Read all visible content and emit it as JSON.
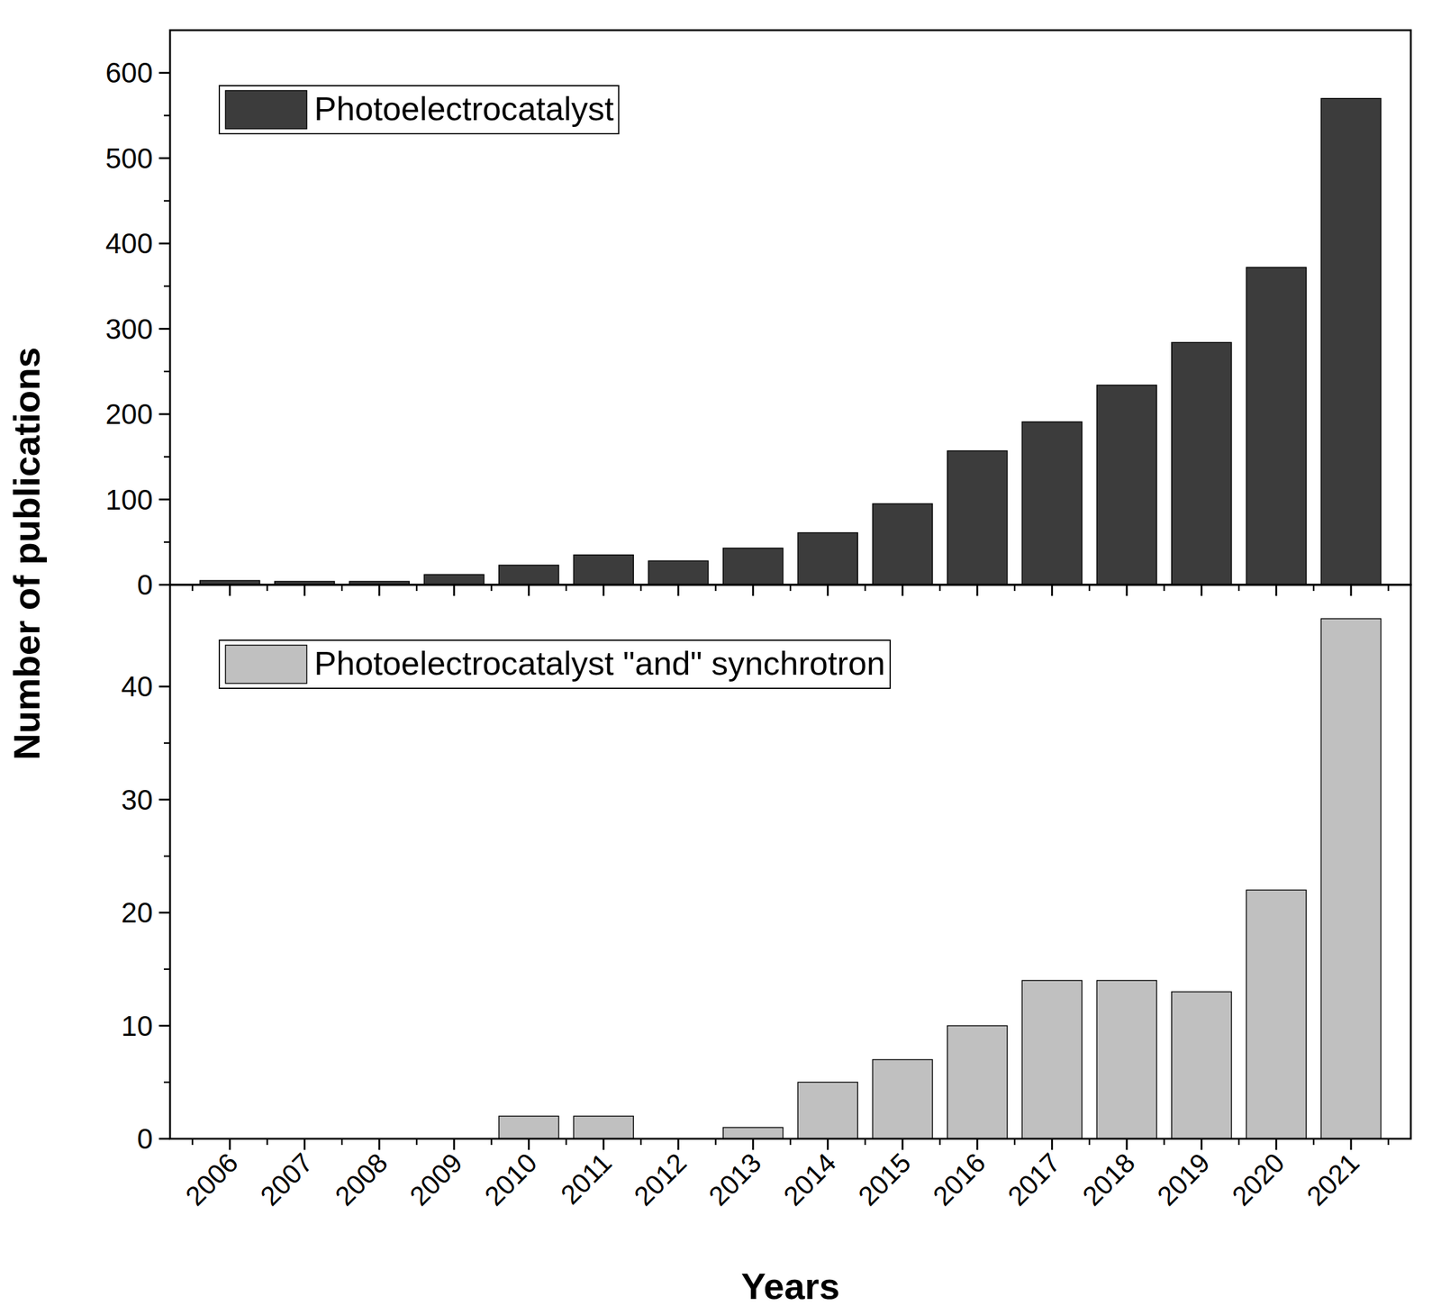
{
  "chart_data": [
    {
      "type": "bar",
      "y_label": "Number of publications",
      "categories": [
        "2006",
        "2007",
        "2008",
        "2009",
        "2010",
        "2011",
        "2012",
        "2013",
        "2014",
        "2015",
        "2016",
        "2017",
        "2018",
        "2019",
        "2020",
        "2021"
      ],
      "series": [
        {
          "name": "Photoelectrocatalyst",
          "color": "#3c3c3c",
          "values": [
            5,
            4,
            4,
            12,
            23,
            35,
            28,
            43,
            61,
            95,
            157,
            191,
            234,
            284,
            372,
            570
          ]
        }
      ],
      "ylim": [
        0,
        650
      ],
      "yticks": [
        0,
        100,
        200,
        300,
        400,
        500,
        600
      ],
      "legend": "top-left",
      "tick_labels": "y"
    },
    {
      "type": "bar",
      "x_label": "Years",
      "categories": [
        "2006",
        "2007",
        "2008",
        "2009",
        "2010",
        "2011",
        "2012",
        "2013",
        "2014",
        "2015",
        "2016",
        "2017",
        "2018",
        "2019",
        "2020",
        "2021"
      ],
      "series": [
        {
          "name": "Photoelectrocatalyst \"and\" synchrotron",
          "color": "#c0c0c0",
          "values": [
            0,
            0,
            0,
            0,
            2,
            2,
            0,
            1,
            5,
            7,
            10,
            14,
            14,
            13,
            22,
            46
          ]
        }
      ],
      "ylim": [
        0,
        49
      ],
      "yticks": [
        0,
        10,
        20,
        30,
        40
      ],
      "legend": "top-left"
    }
  ]
}
